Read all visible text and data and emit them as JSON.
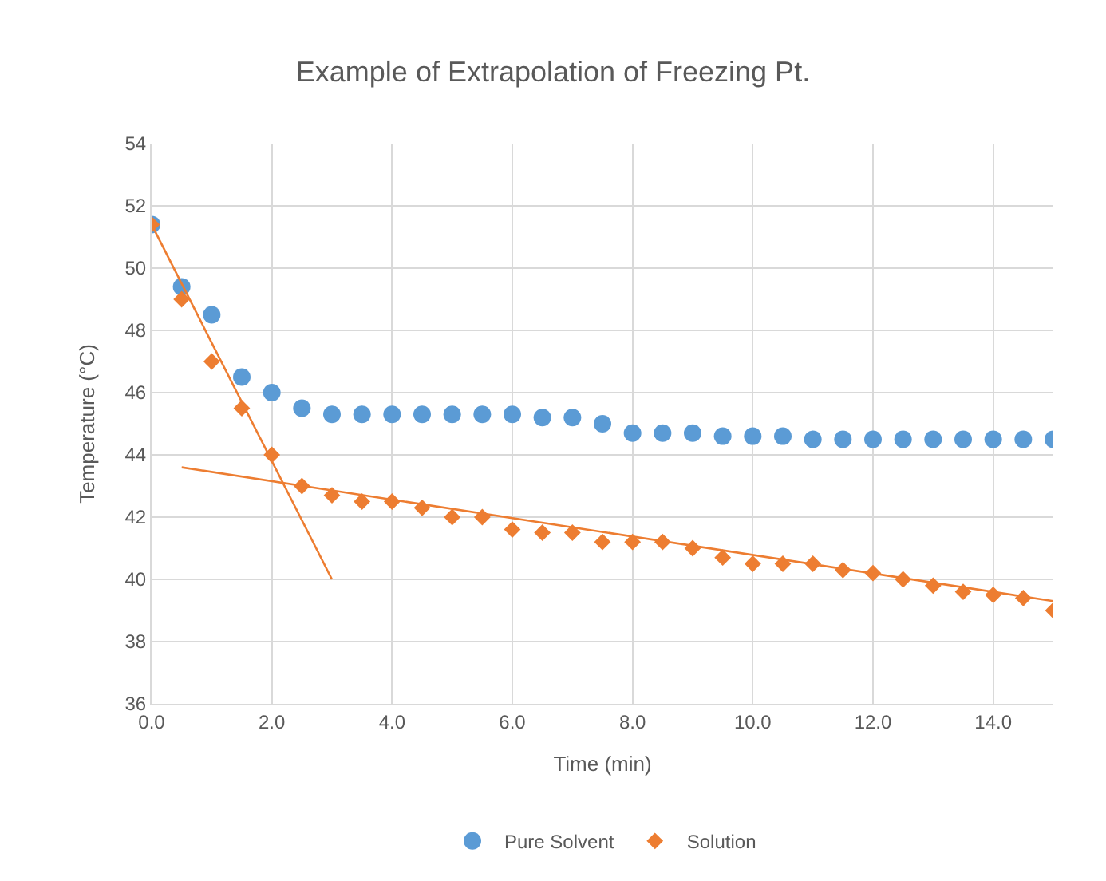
{
  "chart_data": {
    "type": "scatter",
    "title": "Example of Extrapolation of Freezing Pt.",
    "xlabel": "Time (min)",
    "ylabel": "Temperature (°C)",
    "xlim": [
      0,
      15
    ],
    "xticks": [
      {
        "value": 0,
        "label": "0.0"
      },
      {
        "value": 2,
        "label": "2.0"
      },
      {
        "value": 4,
        "label": "4.0"
      },
      {
        "value": 6,
        "label": "6.0"
      },
      {
        "value": 8,
        "label": "8.0"
      },
      {
        "value": 10,
        "label": "10.0"
      },
      {
        "value": 12,
        "label": "12.0"
      },
      {
        "value": 14,
        "label": "14.0"
      }
    ],
    "ylim": [
      36,
      54
    ],
    "yticks": [
      36,
      38,
      40,
      42,
      44,
      46,
      48,
      50,
      52,
      54
    ],
    "grid": true,
    "legend": "bottom",
    "x": [
      0,
      0.5,
      1,
      1.5,
      2,
      2.5,
      3,
      3.5,
      4,
      4.5,
      5,
      5.5,
      6,
      6.5,
      7,
      7.5,
      8,
      8.5,
      9,
      9.5,
      10,
      10.5,
      11,
      11.5,
      12,
      12.5,
      13,
      13.5,
      14,
      14.5,
      15
    ],
    "series": [
      {
        "name": "Pure Solvent",
        "color": "#5b9bd5",
        "marker": "circle",
        "values": [
          51.4,
          49.4,
          48.5,
          46.5,
          46.0,
          45.5,
          45.3,
          45.3,
          45.3,
          45.3,
          45.3,
          45.3,
          45.3,
          45.2,
          45.2,
          45.0,
          44.7,
          44.7,
          44.7,
          44.6,
          44.6,
          44.6,
          44.5,
          44.5,
          44.5,
          44.5,
          44.5,
          44.5,
          44.5,
          44.5,
          44.5
        ]
      },
      {
        "name": "Solution",
        "color": "#ed7d31",
        "marker": "diamond",
        "values": [
          51.4,
          49.0,
          47.0,
          45.5,
          44.0,
          43.0,
          42.7,
          42.5,
          42.5,
          42.3,
          42.0,
          42.0,
          41.6,
          41.5,
          41.5,
          41.2,
          41.2,
          41.2,
          41.0,
          40.7,
          40.5,
          40.5,
          40.5,
          40.3,
          40.2,
          40.0,
          39.8,
          39.6,
          39.5,
          39.4,
          39.0
        ]
      },
      {
        "type": "line",
        "color": "#ed7d31",
        "x": [
          0,
          3
        ],
        "values": [
          51.4,
          40.0
        ]
      },
      {
        "type": "line",
        "color": "#ed7d31",
        "x": [
          0.5,
          15
        ],
        "values": [
          43.6,
          39.3
        ]
      }
    ]
  }
}
